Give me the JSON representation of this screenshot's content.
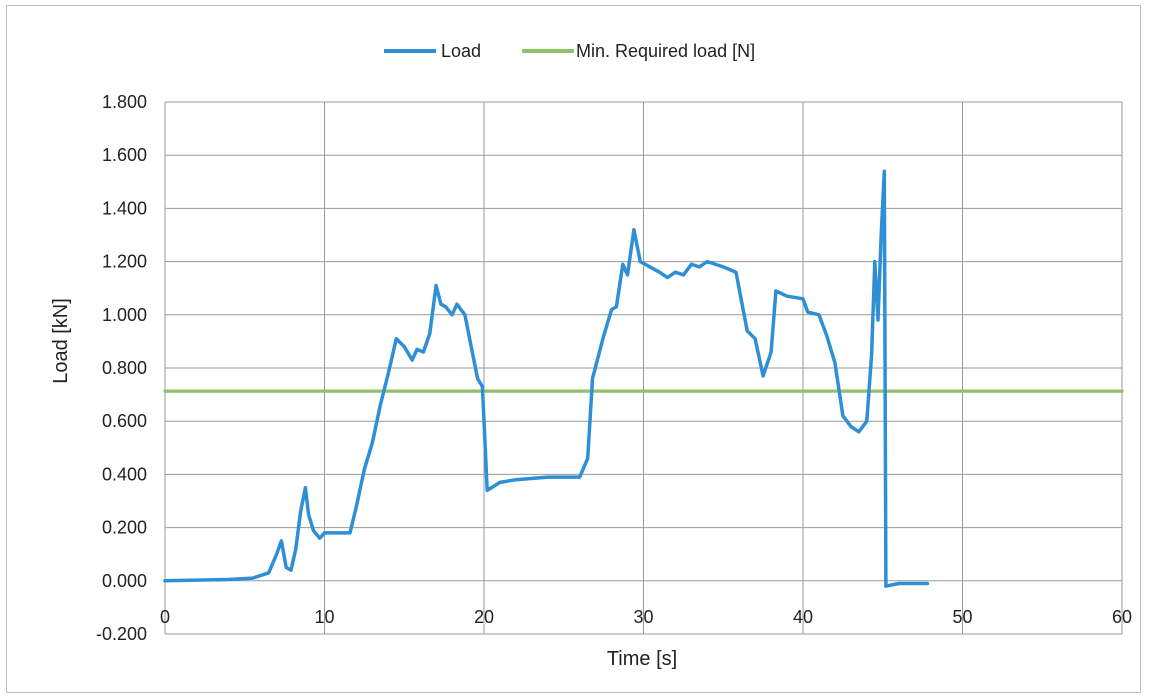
{
  "chart_data": {
    "type": "line",
    "title": "",
    "xlabel": "Time [s]",
    "ylabel": "Load [kN]",
    "xlim": [
      0,
      60
    ],
    "ylim": [
      -0.2,
      1.8
    ],
    "x_ticks": [
      "0",
      "10",
      "20",
      "30",
      "40",
      "50",
      "60"
    ],
    "y_ticks": [
      "1.800",
      "1.600",
      "1.400",
      "1.200",
      "1.000",
      "0.800",
      "0.600",
      "0.400",
      "0.200",
      "0.000",
      "-0.200"
    ],
    "grid": true,
    "legend_position": "top",
    "series": [
      {
        "name": "Load",
        "color": "#2e8fd6",
        "points": [
          [
            0,
            0.0
          ],
          [
            4,
            0.005
          ],
          [
            5.5,
            0.01
          ],
          [
            6.5,
            0.03
          ],
          [
            7.0,
            0.1
          ],
          [
            7.3,
            0.15
          ],
          [
            7.6,
            0.05
          ],
          [
            7.9,
            0.04
          ],
          [
            8.2,
            0.12
          ],
          [
            8.5,
            0.26
          ],
          [
            8.8,
            0.35
          ],
          [
            9.0,
            0.25
          ],
          [
            9.3,
            0.19
          ],
          [
            9.7,
            0.16
          ],
          [
            10.0,
            0.18
          ],
          [
            11.0,
            0.18
          ],
          [
            11.6,
            0.18
          ],
          [
            12.0,
            0.28
          ],
          [
            12.5,
            0.42
          ],
          [
            13.0,
            0.52
          ],
          [
            13.5,
            0.66
          ],
          [
            14.0,
            0.78
          ],
          [
            14.5,
            0.91
          ],
          [
            15.0,
            0.88
          ],
          [
            15.5,
            0.83
          ],
          [
            15.8,
            0.87
          ],
          [
            16.2,
            0.86
          ],
          [
            16.6,
            0.93
          ],
          [
            17.0,
            1.11
          ],
          [
            17.3,
            1.04
          ],
          [
            17.6,
            1.03
          ],
          [
            18.0,
            1.0
          ],
          [
            18.3,
            1.04
          ],
          [
            18.8,
            1.0
          ],
          [
            19.2,
            0.88
          ],
          [
            19.6,
            0.76
          ],
          [
            19.9,
            0.73
          ],
          [
            20.2,
            0.34
          ],
          [
            21.0,
            0.37
          ],
          [
            22.0,
            0.38
          ],
          [
            24.0,
            0.39
          ],
          [
            26.0,
            0.39
          ],
          [
            26.5,
            0.46
          ],
          [
            26.8,
            0.76
          ],
          [
            27.5,
            0.92
          ],
          [
            28.0,
            1.02
          ],
          [
            28.3,
            1.03
          ],
          [
            28.7,
            1.19
          ],
          [
            29.0,
            1.15
          ],
          [
            29.4,
            1.32
          ],
          [
            29.8,
            1.2
          ],
          [
            31.0,
            1.16
          ],
          [
            31.5,
            1.14
          ],
          [
            32.0,
            1.16
          ],
          [
            32.5,
            1.15
          ],
          [
            33.0,
            1.19
          ],
          [
            33.5,
            1.18
          ],
          [
            34.0,
            1.2
          ],
          [
            35.0,
            1.18
          ],
          [
            35.8,
            1.16
          ],
          [
            36.5,
            0.94
          ],
          [
            37.0,
            0.91
          ],
          [
            37.5,
            0.77
          ],
          [
            38.0,
            0.86
          ],
          [
            38.3,
            1.09
          ],
          [
            39.0,
            1.07
          ],
          [
            40.0,
            1.06
          ],
          [
            40.3,
            1.01
          ],
          [
            41.0,
            1.0
          ],
          [
            41.5,
            0.92
          ],
          [
            42.0,
            0.82
          ],
          [
            42.5,
            0.62
          ],
          [
            43.0,
            0.58
          ],
          [
            43.5,
            0.56
          ],
          [
            44.0,
            0.6
          ],
          [
            44.3,
            0.85
          ],
          [
            44.5,
            1.2
          ],
          [
            44.7,
            0.98
          ],
          [
            44.9,
            1.3
          ],
          [
            45.1,
            1.54
          ],
          [
            45.2,
            -0.02
          ],
          [
            46.0,
            -0.01
          ],
          [
            47.8,
            -0.01
          ]
        ]
      },
      {
        "name": "Min. Required load [N]",
        "color": "#8fc06a",
        "points": [
          [
            0,
            0.713
          ],
          [
            60,
            0.713
          ]
        ]
      }
    ]
  }
}
